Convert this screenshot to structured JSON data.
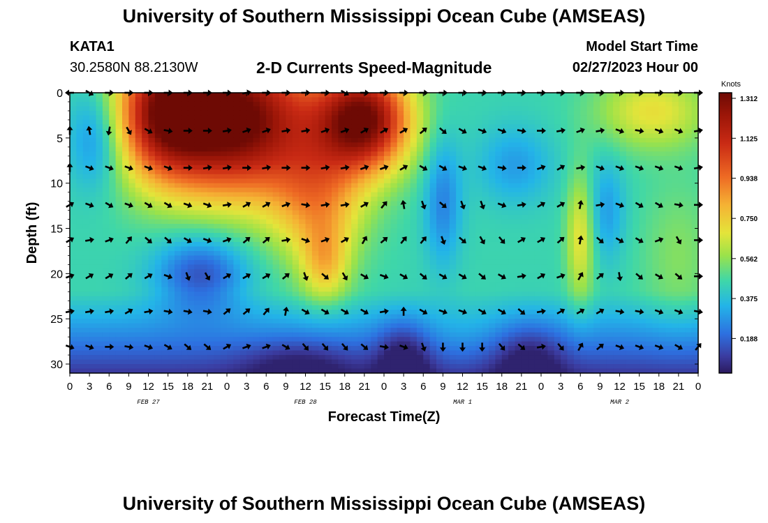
{
  "header": {
    "title": "University of Southern Mississippi Ocean Cube (AMSEAS)",
    "station_id": "KATA1",
    "station_coords": "30.2580N  88.2130W",
    "chart_title": "2-D Currents Speed-Magnitude",
    "model_start_label": "Model Start Time",
    "model_start_value": "02/27/2023 Hour 00"
  },
  "footer": {
    "title": "University of Southern Mississippi Ocean Cube (AMSEAS)"
  },
  "chart_data": {
    "type": "heatmap",
    "title": "2-D Currents Speed-Magnitude",
    "xlabel": "Forecast Time(Z)",
    "ylabel": "Depth (ft)",
    "x_tick_labels": [
      "0",
      "3",
      "6",
      "9",
      "12",
      "15",
      "18",
      "21",
      "0",
      "3",
      "6",
      "9",
      "12",
      "15",
      "18",
      "21",
      "0",
      "3",
      "6",
      "9",
      "12",
      "15",
      "18",
      "21",
      "0",
      "3",
      "6",
      "9",
      "12",
      "15",
      "18",
      "21",
      "0"
    ],
    "date_labels": [
      {
        "label": "FEB 27",
        "hour": 12
      },
      {
        "label": "FEB 28",
        "hour": 36
      },
      {
        "label": "MAR 1",
        "hour": 60
      },
      {
        "label": "MAR 2",
        "hour": 84
      }
    ],
    "xlim": [
      0,
      96
    ],
    "ylim": [
      0,
      31
    ],
    "y_ticks": [
      0,
      5,
      10,
      15,
      20,
      25,
      30
    ],
    "colorbar": {
      "label": "Knots",
      "min": 0.0,
      "max": 1.312,
      "tick_values": [
        1.312,
        1.125,
        0.938,
        0.75,
        0.562,
        0.375,
        0.188
      ],
      "tick_labels": [
        "1.312",
        "1.125",
        "0.938",
        "0.750",
        "0.562",
        "0.375",
        "0.188"
      ]
    },
    "arrow_depths_ft": [
      0,
      4.2,
      8.3,
      12.4,
      16.3,
      20.3,
      24.2,
      28.1
    ],
    "arrow_hours": [
      0,
      3,
      6,
      9,
      12,
      15,
      18,
      21,
      24,
      27,
      30,
      33,
      36,
      39,
      42,
      45,
      48,
      51,
      54,
      57,
      60,
      63,
      66,
      69,
      72,
      75,
      78,
      81,
      84,
      87,
      90,
      93,
      96
    ],
    "arrow_directions_deg": [
      [
        180,
        -30,
        0,
        0,
        0,
        0,
        0,
        0,
        0,
        10,
        0,
        0,
        0,
        0,
        -30,
        0,
        0,
        0,
        0,
        0,
        0,
        0,
        0,
        0,
        0,
        0,
        0,
        0,
        0,
        0,
        0,
        0,
        0
      ],
      [
        90,
        100,
        -100,
        -60,
        -30,
        -10,
        0,
        0,
        10,
        20,
        20,
        10,
        10,
        20,
        20,
        30,
        30,
        30,
        40,
        -40,
        -30,
        -20,
        -20,
        -10,
        0,
        10,
        20,
        10,
        -20,
        -10,
        -20,
        -20,
        10
      ],
      [
        90,
        -20,
        -20,
        -20,
        -20,
        -20,
        0,
        10,
        10,
        0,
        10,
        0,
        0,
        10,
        10,
        20,
        20,
        30,
        -30,
        -30,
        -20,
        -20,
        -10,
        0,
        20,
        30,
        10,
        -20,
        -20,
        -20,
        -20,
        -20,
        10
      ],
      [
        30,
        -20,
        -30,
        -20,
        -30,
        -30,
        -20,
        -20,
        10,
        30,
        30,
        20,
        -10,
        10,
        10,
        30,
        50,
        100,
        -70,
        -40,
        -70,
        -70,
        -20,
        10,
        30,
        30,
        80,
        10,
        -20,
        -30,
        -30,
        -10,
        0
      ],
      [
        30,
        10,
        20,
        50,
        -40,
        -40,
        -30,
        -20,
        20,
        40,
        40,
        10,
        -20,
        20,
        30,
        60,
        40,
        50,
        50,
        -70,
        -40,
        -60,
        -50,
        30,
        30,
        40,
        80,
        -40,
        -30,
        -30,
        20,
        -60,
        0
      ],
      [
        20,
        30,
        30,
        40,
        30,
        -20,
        -70,
        -60,
        30,
        30,
        30,
        40,
        -70,
        -40,
        -60,
        -30,
        -20,
        -30,
        -40,
        -30,
        -30,
        -40,
        -30,
        10,
        30,
        20,
        60,
        40,
        -80,
        -40,
        -30,
        -40,
        0
      ],
      [
        10,
        10,
        10,
        30,
        10,
        -10,
        -10,
        -10,
        40,
        40,
        50,
        80,
        -30,
        -30,
        -30,
        -30,
        10,
        90,
        -30,
        -20,
        -20,
        -30,
        -30,
        -40,
        10,
        30,
        30,
        30,
        -10,
        -10,
        -20,
        -20,
        -10
      ],
      [
        -20,
        -20,
        0,
        -10,
        -20,
        -30,
        -40,
        -40,
        30,
        20,
        20,
        -30,
        -50,
        -50,
        -50,
        -40,
        -10,
        -20,
        -70,
        -90,
        -90,
        -90,
        -50,
        -40,
        10,
        -50,
        60,
        40,
        -20,
        -20,
        -20,
        -30,
        50
      ]
    ]
  }
}
